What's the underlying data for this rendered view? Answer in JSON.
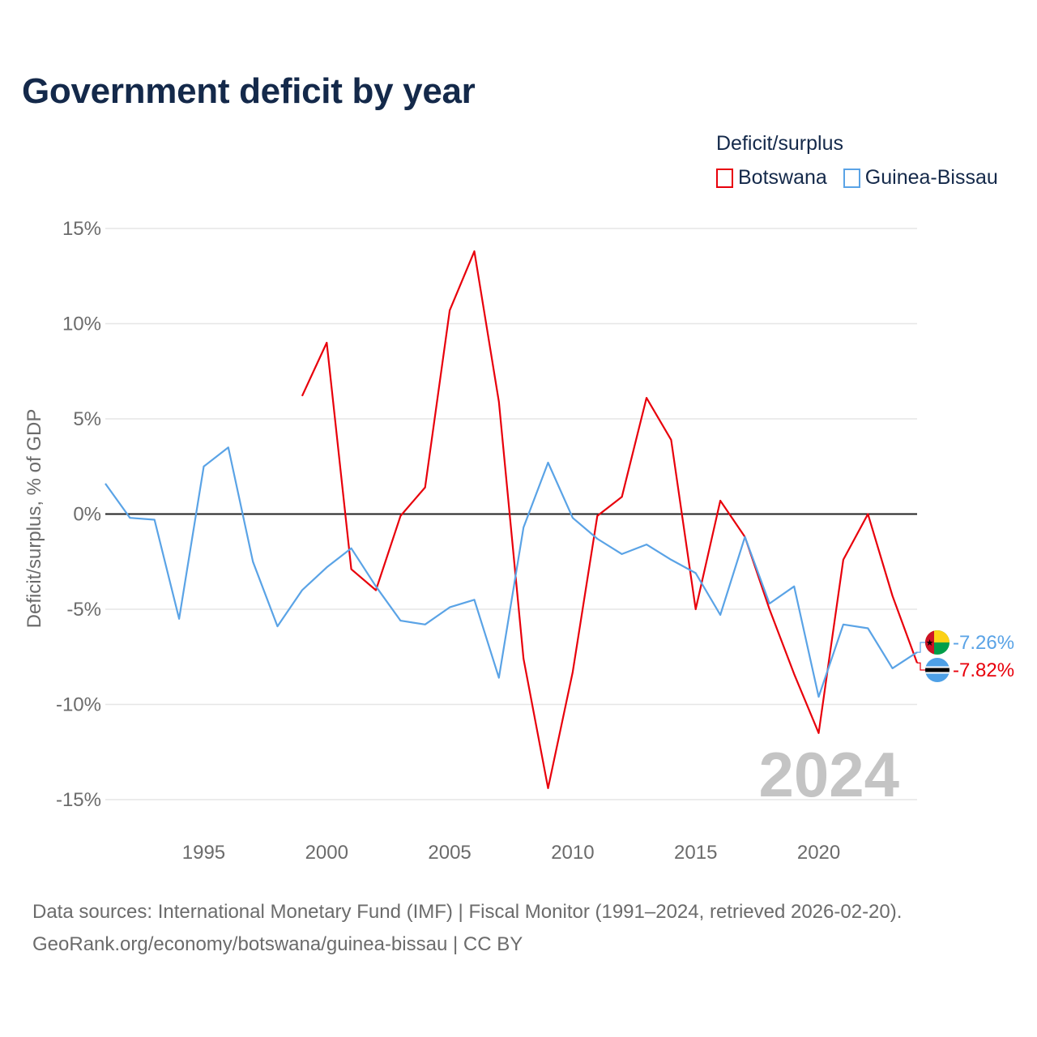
{
  "title": "Government deficit by year",
  "legend": {
    "title": "Deficit/surplus",
    "items": [
      {
        "name": "Botswana",
        "color": "#e8000b"
      },
      {
        "name": "Guinea-Bissau",
        "color": "#5aa3e6"
      }
    ]
  },
  "year_label": "2024",
  "end_labels": {
    "guinea_bissau": "-7.26%",
    "botswana": "-7.82%"
  },
  "footer": {
    "line1": "Data sources: International Monetary Fund (IMF) | Fiscal Monitor (1991–2024, retrieved 2026-02-20).",
    "line2": "GeoRank.org/economy/botswana/guinea-bissau | CC BY"
  },
  "chart_data": {
    "type": "line",
    "title": "Government deficit by year",
    "xlabel": "",
    "ylabel": "Deficit/surplus, % of GDP",
    "xlim": [
      1991,
      2024
    ],
    "ylim": [
      -15,
      15
    ],
    "x_ticks": [
      1995,
      2000,
      2005,
      2010,
      2015,
      2020
    ],
    "x_tick_labels": [
      "1995",
      "2000",
      "2005",
      "2010",
      "2015",
      "2020"
    ],
    "y_ticks": [
      15,
      10,
      5,
      0,
      -5,
      -10,
      -15
    ],
    "y_tick_labels": [
      "15%",
      "10%",
      "5%",
      "0%",
      "-5%",
      "-10%",
      "-15%"
    ],
    "grid": true,
    "legend_position": "top-right",
    "series": [
      {
        "name": "Botswana",
        "color": "#e8000b",
        "x": [
          1999,
          2000,
          2001,
          2002,
          2003,
          2004,
          2005,
          2006,
          2007,
          2008,
          2009,
          2010,
          2011,
          2012,
          2013,
          2014,
          2015,
          2016,
          2017,
          2018,
          2019,
          2020,
          2021,
          2022,
          2023,
          2024
        ],
        "values": [
          6.2,
          9.0,
          -2.9,
          -4.0,
          -0.1,
          1.4,
          10.7,
          13.8,
          5.9,
          -7.6,
          -14.4,
          -8.3,
          -0.1,
          0.9,
          6.1,
          3.9,
          -5.0,
          0.7,
          -1.2,
          -5.0,
          -8.4,
          -11.5,
          -2.4,
          0.0,
          -4.3,
          -7.82
        ]
      },
      {
        "name": "Guinea-Bissau",
        "color": "#5aa3e6",
        "x": [
          1991,
          1992,
          1993,
          1994,
          1995,
          1996,
          1997,
          1998,
          1999,
          2000,
          2001,
          2002,
          2003,
          2004,
          2005,
          2006,
          2007,
          2008,
          2009,
          2010,
          2011,
          2012,
          2013,
          2014,
          2015,
          2016,
          2017,
          2018,
          2019,
          2020,
          2021,
          2022,
          2023,
          2024
        ],
        "values": [
          1.6,
          -0.2,
          -0.3,
          -5.5,
          2.5,
          3.5,
          -2.5,
          -5.9,
          -4.0,
          -2.8,
          -1.8,
          -3.8,
          -5.6,
          -5.8,
          -4.9,
          -4.5,
          -8.6,
          -0.7,
          2.7,
          -0.2,
          -1.3,
          -2.1,
          -1.6,
          -2.4,
          -3.1,
          -5.3,
          -1.2,
          -4.7,
          -3.8,
          -9.6,
          -5.8,
          -6.0,
          -8.1,
          -7.26
        ]
      }
    ]
  }
}
